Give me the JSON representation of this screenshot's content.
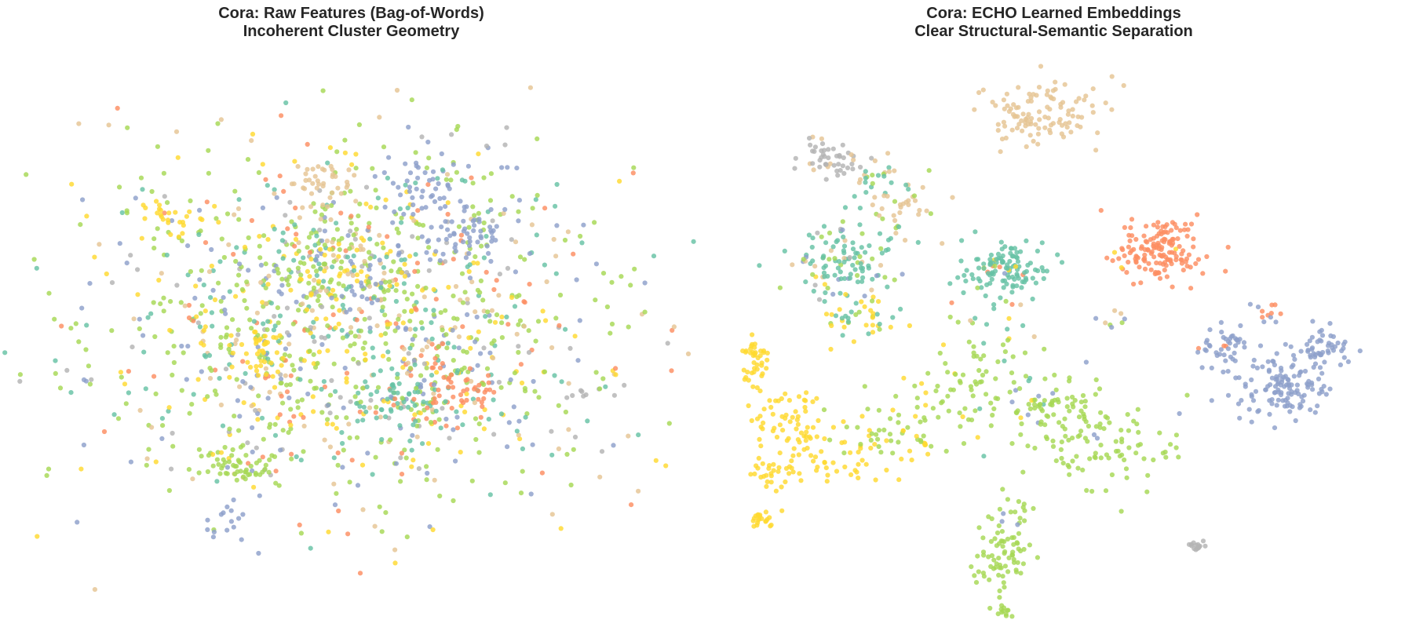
{
  "palette": [
    "#66c2a5",
    "#fc8d62",
    "#8da0cb",
    "#a6d854",
    "#ffd92f",
    "#e5c494",
    "#b3b3b3"
  ],
  "chart_data": [
    {
      "type": "scatter",
      "title": "Cora: Raw Features (Bag-of-Words)",
      "subtitle": "Incoherent Cluster Geometry",
      "axes_visible": false,
      "grid": false,
      "xlim": [
        0,
        100
      ],
      "ylim": [
        0,
        100
      ],
      "clusters": [
        {
          "cx": 50,
          "cy": 50,
          "sx": 20,
          "sy": 17,
          "n": 1350,
          "weights": [
            0.13,
            0.08,
            0.12,
            0.35,
            0.14,
            0.1,
            0.08
          ]
        },
        {
          "cx": 32,
          "cy": 25,
          "sx": 3,
          "sy": 2.5,
          "n": 60,
          "weights": [
            0,
            0,
            0.05,
            0.9,
            0.05,
            0,
            0
          ]
        },
        {
          "cx": 68,
          "cy": 67,
          "sx": 3,
          "sy": 2.5,
          "n": 55,
          "weights": [
            0,
            0,
            0.95,
            0.05,
            0,
            0,
            0
          ]
        },
        {
          "cx": 57,
          "cy": 37,
          "sx": 3.5,
          "sy": 2.5,
          "n": 70,
          "weights": [
            0.75,
            0.15,
            0.05,
            0.05,
            0,
            0,
            0
          ]
        },
        {
          "cx": 67,
          "cy": 38,
          "sx": 4,
          "sy": 3,
          "n": 55,
          "weights": [
            0.1,
            0.85,
            0.05,
            0,
            0,
            0,
            0
          ]
        },
        {
          "cx": 62,
          "cy": 75,
          "sx": 4,
          "sy": 3,
          "n": 45,
          "weights": [
            0.05,
            0,
            0.95,
            0,
            0,
            0,
            0
          ]
        },
        {
          "cx": 37,
          "cy": 44,
          "sx": 2.5,
          "sy": 2.5,
          "n": 40,
          "weights": [
            0,
            0,
            0,
            0.1,
            0.9,
            0,
            0
          ]
        },
        {
          "cx": 22,
          "cy": 70,
          "sx": 2,
          "sy": 2,
          "n": 25,
          "weights": [
            0,
            0,
            0,
            0,
            1,
            0,
            0
          ]
        },
        {
          "cx": 46,
          "cy": 76,
          "sx": 3,
          "sy": 3,
          "n": 40,
          "weights": [
            0,
            0,
            0,
            0,
            0,
            1,
            0
          ]
        },
        {
          "cx": 51,
          "cy": 60,
          "sx": 5,
          "sy": 4,
          "n": 110,
          "weights": [
            0.1,
            0,
            0.2,
            0.2,
            0.35,
            0.15,
            0
          ]
        },
        {
          "cx": 30,
          "cy": 15,
          "sx": 2,
          "sy": 1.5,
          "n": 15,
          "weights": [
            0,
            0,
            1,
            0,
            0,
            0,
            0
          ]
        },
        {
          "cx": 85,
          "cy": 37,
          "sx": 1,
          "sy": 0.5,
          "n": 6,
          "weights": [
            0,
            0,
            0,
            0,
            0,
            0,
            1
          ]
        }
      ]
    },
    {
      "type": "scatter",
      "title": "Cora: ECHO Learned Embeddings",
      "subtitle": "Clear Structural-Semantic Separation",
      "axes_visible": false,
      "grid": false,
      "xlim": [
        0,
        100
      ],
      "ylim": [
        0,
        100
      ],
      "clusters": [
        {
          "cx": 48,
          "cy": 90,
          "sx": 5,
          "sy": 3,
          "n": 110,
          "weights": [
            0,
            0,
            0,
            0,
            0,
            1,
            0
          ]
        },
        {
          "cx": 15,
          "cy": 82,
          "sx": 2.5,
          "sy": 1.8,
          "n": 50,
          "weights": [
            0,
            0,
            0,
            0,
            0,
            0.15,
            0.85
          ]
        },
        {
          "cx": 22,
          "cy": 78,
          "sx": 2.5,
          "sy": 2.5,
          "n": 30,
          "weights": [
            0.3,
            0,
            0,
            0.2,
            0,
            0.5,
            0
          ]
        },
        {
          "cx": 27,
          "cy": 73,
          "sx": 2.5,
          "sy": 3,
          "n": 30,
          "weights": [
            0,
            0,
            0,
            0.4,
            0,
            0.6,
            0
          ]
        },
        {
          "cx": 17,
          "cy": 62,
          "sx": 4.5,
          "sy": 4,
          "n": 120,
          "weights": [
            0.7,
            0,
            0.05,
            0.1,
            0.05,
            0.05,
            0.05
          ]
        },
        {
          "cx": 20,
          "cy": 52,
          "sx": 3,
          "sy": 2,
          "n": 40,
          "weights": [
            0.5,
            0,
            0,
            0.1,
            0.4,
            0,
            0
          ]
        },
        {
          "cx": 42,
          "cy": 62,
          "sx": 3.5,
          "sy": 2.5,
          "n": 110,
          "weights": [
            0.95,
            0.03,
            0,
            0,
            0.02,
            0,
            0
          ]
        },
        {
          "cx": 66,
          "cy": 65,
          "sx": 3.5,
          "sy": 3,
          "n": 150,
          "weights": [
            0,
            0.97,
            0,
            0,
            0.03,
            0,
            0
          ]
        },
        {
          "cx": 85,
          "cy": 40,
          "sx": 4,
          "sy": 3.5,
          "n": 130,
          "weights": [
            0,
            0,
            1,
            0,
            0,
            0,
            0
          ]
        },
        {
          "cx": 76,
          "cy": 47,
          "sx": 2.5,
          "sy": 2,
          "n": 40,
          "weights": [
            0,
            0.1,
            0.9,
            0,
            0,
            0,
            0
          ]
        },
        {
          "cx": 92,
          "cy": 46,
          "sx": 2.5,
          "sy": 2,
          "n": 45,
          "weights": [
            0,
            0,
            1,
            0,
            0,
            0,
            0
          ]
        },
        {
          "cx": 83,
          "cy": 53,
          "sx": 1.5,
          "sy": 1,
          "n": 12,
          "weights": [
            0,
            0.5,
            0.5,
            0,
            0,
            0,
            0
          ]
        },
        {
          "cx": 3,
          "cy": 44,
          "sx": 1,
          "sy": 2.5,
          "n": 40,
          "weights": [
            0,
            0,
            0,
            0,
            1,
            0,
            0
          ]
        },
        {
          "cx": 8,
          "cy": 33,
          "sx": 3,
          "sy": 2.5,
          "n": 50,
          "weights": [
            0,
            0,
            0,
            0,
            1,
            0,
            0
          ]
        },
        {
          "cx": 15,
          "cy": 26,
          "sx": 4,
          "sy": 2.5,
          "n": 50,
          "weights": [
            0,
            0,
            0,
            0,
            1,
            0,
            0
          ]
        },
        {
          "cx": 6,
          "cy": 22,
          "sx": 1.5,
          "sy": 2,
          "n": 30,
          "weights": [
            0,
            0,
            0,
            0,
            1,
            0,
            0
          ]
        },
        {
          "cx": 4,
          "cy": 14,
          "sx": 1,
          "sy": 1,
          "n": 20,
          "weights": [
            0,
            0,
            0,
            0,
            1,
            0,
            0
          ]
        },
        {
          "cx": 27,
          "cy": 30,
          "sx": 5,
          "sy": 3,
          "n": 60,
          "weights": [
            0,
            0,
            0,
            0.6,
            0.4,
            0,
            0
          ]
        },
        {
          "cx": 36,
          "cy": 38,
          "sx": 6,
          "sy": 4,
          "n": 70,
          "weights": [
            0.05,
            0,
            0,
            0.9,
            0.05,
            0,
            0
          ]
        },
        {
          "cx": 50,
          "cy": 35,
          "sx": 4,
          "sy": 3.5,
          "n": 60,
          "weights": [
            0,
            0,
            0.05,
            0.95,
            0,
            0,
            0
          ]
        },
        {
          "cx": 58,
          "cy": 28,
          "sx": 6,
          "sy": 4,
          "n": 90,
          "weights": [
            0,
            0,
            0.05,
            0.95,
            0,
            0,
            0
          ]
        },
        {
          "cx": 42,
          "cy": 7,
          "sx": 2.5,
          "sy": 3,
          "n": 70,
          "weights": [
            0,
            0,
            0,
            1,
            0,
            0,
            0
          ]
        },
        {
          "cx": 42,
          "cy": -4,
          "sx": 1,
          "sy": 1,
          "n": 20,
          "weights": [
            0,
            0,
            0,
            1,
            0,
            0,
            0
          ]
        },
        {
          "cx": 43,
          "cy": 15,
          "sx": 2,
          "sy": 2,
          "n": 15,
          "weights": [
            0,
            0,
            0.2,
            0.8,
            0,
            0,
            0
          ]
        },
        {
          "cx": 72,
          "cy": 9,
          "sx": 1,
          "sy": 0.6,
          "n": 15,
          "weights": [
            0,
            0,
            0,
            0,
            0,
            0,
            1
          ]
        },
        {
          "cx": 58,
          "cy": 52,
          "sx": 2,
          "sy": 1,
          "n": 8,
          "weights": [
            0,
            0,
            0.4,
            0.2,
            0,
            0.4,
            0
          ]
        },
        {
          "cx": 40,
          "cy": 52,
          "sx": 6,
          "sy": 5,
          "n": 35,
          "weights": [
            0.25,
            0.1,
            0.1,
            0.35,
            0.1,
            0.05,
            0.05
          ]
        }
      ]
    }
  ]
}
